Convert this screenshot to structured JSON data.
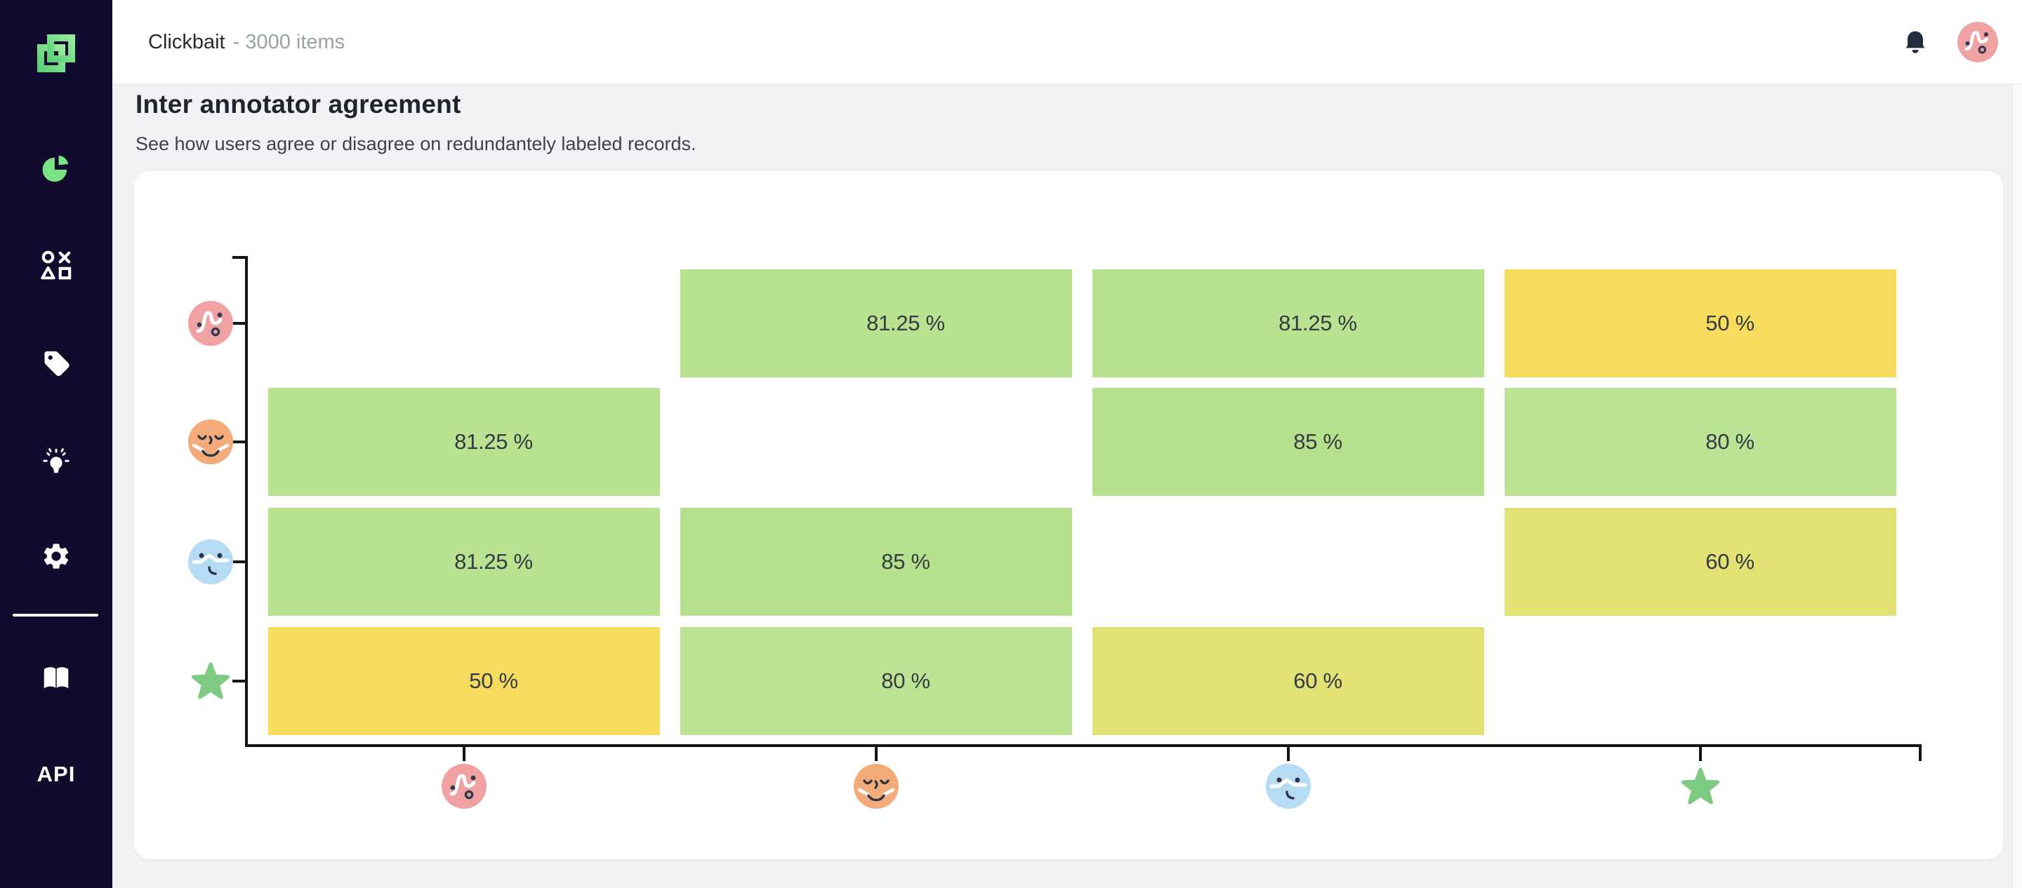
{
  "app": {
    "sidebar": {
      "logo_name": "brand-logo",
      "nav_items": [
        "dashboard-pie",
        "labeling-shapes",
        "tags",
        "heuristics-bulb",
        "settings-gear"
      ],
      "footer_items": [
        "documentation-book",
        "api"
      ],
      "api_label": "API"
    },
    "header": {
      "project_name": "Clickbait",
      "items_suffix": "- 3000 items",
      "icons": [
        "bell-icon",
        "user-avatar-pink"
      ]
    }
  },
  "page": {
    "title": "Inter annotator agreement",
    "subtitle": "See how users agree or disagree on redundantely labeled records."
  },
  "chart_data": {
    "type": "heatmap",
    "title": "Inter annotator agreement",
    "x_categories": [
      "annotator-pink-face",
      "annotator-orange-face",
      "annotator-blue-face",
      "annotator-green-star"
    ],
    "y_categories": [
      "annotator-pink-face",
      "annotator-orange-face",
      "annotator-blue-face",
      "annotator-green-star"
    ],
    "unit": "%",
    "matrix": [
      [
        null,
        81.25,
        81.25,
        50
      ],
      [
        81.25,
        null,
        85,
        80
      ],
      [
        81.25,
        85,
        null,
        60
      ],
      [
        50,
        80,
        60,
        null
      ]
    ],
    "value_colors": {
      "50": "#f6db5f",
      "60": "#e2e173",
      "80": "#bce293",
      "81.25": "#b9e290",
      "85": "#b5e08c"
    },
    "diagonal": "empty",
    "legend": "none",
    "grid": "off",
    "axis_color": "#141414"
  },
  "colors": {
    "sidebar_bg": "#110b2e",
    "accent_green": "#6fdd86",
    "page_bg": "#f2f2f4",
    "card_bg": "#ffffff",
    "avatar_pink": "#f0a2a3",
    "face_orange": "#f2ab79",
    "face_blue": "#b5dcf4",
    "star_green": "#7dcb83",
    "cell_text": "#343b42"
  }
}
